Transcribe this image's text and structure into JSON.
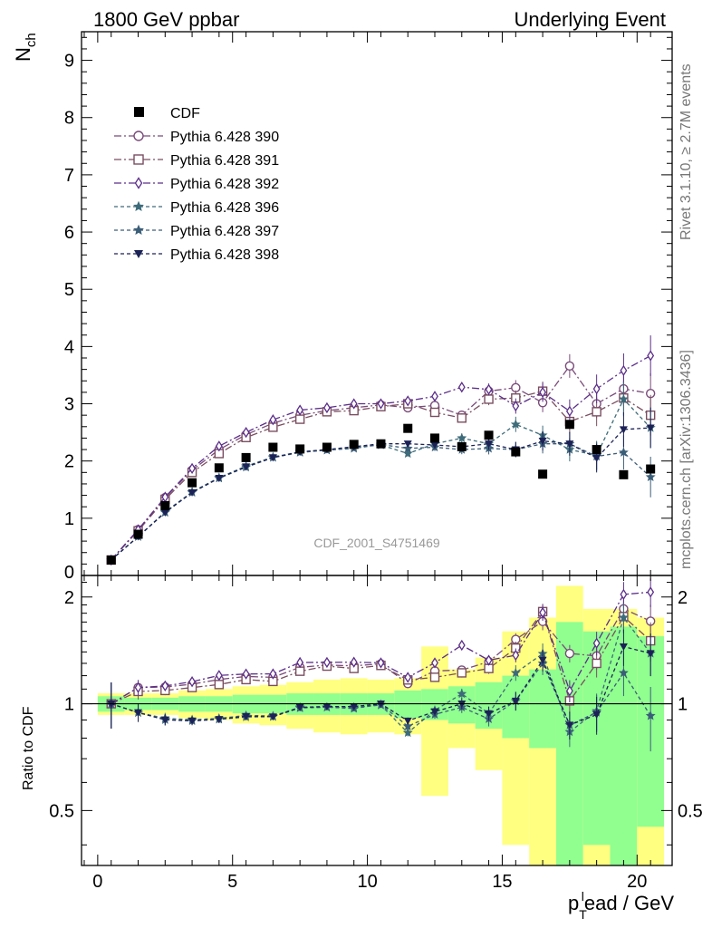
{
  "header": {
    "left": "1800 GeV ppbar",
    "right": "Underlying Event"
  },
  "side_labels": {
    "rivet": "Rivet 3.1.10, ≥ 2.7M events",
    "mcplots": "mcplots.cern.ch [arXiv:1306.3436]"
  },
  "chart_data": {
    "type": "scatter",
    "analysis": "CDF_2001_S4751469",
    "xlabel": {
      "p": "p",
      "sub": "T",
      "sup": "l",
      "rest": "ead / GeV"
    },
    "ylabel": {
      "main": "N",
      "sub": "ch"
    },
    "ratio_ylabel": "Ratio to CDF",
    "xlim": [
      -0.6,
      21.3
    ],
    "ylim": [
      0,
      9.5
    ],
    "ratio_ylim": [
      0.35,
      2.3
    ],
    "x_ticks": [
      "0",
      "5",
      "10",
      "15",
      "20"
    ],
    "y_ticks": [
      "0",
      "1",
      "2",
      "3",
      "4",
      "5",
      "6",
      "7",
      "8",
      "9"
    ],
    "ratio_ticks": [
      "0.5",
      "1",
      "2"
    ],
    "legend": {
      "position": "top-left"
    },
    "x": [
      0.5,
      1.5,
      2.5,
      3.5,
      4.5,
      5.5,
      6.5,
      7.5,
      8.5,
      9.5,
      10.5,
      11.5,
      12.5,
      13.5,
      14.5,
      15.5,
      16.5,
      17.5,
      18.5,
      19.5,
      20.5
    ],
    "data": {
      "name": "CDF",
      "color": "#000000",
      "values": [
        0.27,
        0.72,
        1.22,
        1.62,
        1.88,
        2.06,
        2.24,
        2.21,
        2.24,
        2.29,
        2.3,
        2.57,
        2.4,
        2.25,
        2.45,
        2.16,
        1.77,
        2.64,
        2.2,
        1.76,
        1.86
      ]
    },
    "band_inner": [
      0.05,
      0.04,
      0.04,
      0.05,
      0.05,
      0.06,
      0.06,
      0.07,
      0.07,
      0.07,
      0.07,
      0.09,
      0.1,
      0.12,
      0.15,
      0.2,
      0.25,
      0.7,
      0.6,
      0.65,
      0.55
    ],
    "band_outer": [
      0.07,
      0.07,
      0.07,
      0.09,
      0.1,
      0.12,
      0.13,
      0.15,
      0.17,
      0.18,
      0.17,
      0.18,
      0.45,
      0.25,
      0.35,
      0.6,
      0.75,
      1.15,
      0.85,
      0.85,
      0.75
    ],
    "series": [
      {
        "name": "Pythia 6.428 390",
        "color": "#7a4b7a",
        "marker": "circle",
        "dash": "8,3,2,3",
        "values": [
          0.27,
          0.8,
          1.36,
          1.84,
          2.2,
          2.46,
          2.66,
          2.8,
          2.88,
          2.93,
          2.98,
          2.93,
          2.97,
          2.8,
          3.22,
          3.28,
          3.02,
          3.66,
          3.0,
          3.26,
          3.18
        ]
      },
      {
        "name": "Pythia 6.428 391",
        "color": "#7a4e60",
        "marker": "square",
        "dash": "8,3,2,3",
        "values": [
          0.27,
          0.78,
          1.33,
          1.8,
          2.13,
          2.41,
          2.59,
          2.73,
          2.86,
          2.88,
          2.95,
          3.0,
          2.85,
          2.75,
          3.08,
          3.1,
          3.22,
          2.69,
          2.86,
          3.1,
          2.8
        ]
      },
      {
        "name": "Pythia 6.428 392",
        "color": "#5c2e8a",
        "marker": "diamond",
        "dash": "8,3,2,3",
        "values": [
          0.27,
          0.8,
          1.37,
          1.87,
          2.26,
          2.5,
          2.72,
          2.89,
          2.93,
          3.0,
          3.0,
          3.05,
          3.13,
          3.29,
          3.25,
          2.96,
          3.2,
          2.87,
          3.26,
          3.58,
          3.84
        ]
      },
      {
        "name": "Pythia 6.428 396",
        "color": "#3d6b7a",
        "marker": "star",
        "dash": "4,3",
        "values": [
          0.27,
          0.68,
          1.11,
          1.46,
          1.71,
          1.91,
          2.07,
          2.16,
          2.19,
          2.24,
          2.28,
          2.13,
          2.3,
          2.4,
          2.3,
          2.64,
          2.45,
          2.2,
          2.1,
          3.08,
          2.58
        ]
      },
      {
        "name": "Pythia 6.428 397",
        "color": "#3b5e78",
        "marker": "star",
        "dash": "4,3",
        "values": [
          0.27,
          0.68,
          1.1,
          1.45,
          1.7,
          1.89,
          2.06,
          2.15,
          2.19,
          2.22,
          2.29,
          2.22,
          2.24,
          2.2,
          2.22,
          2.2,
          2.3,
          2.3,
          2.08,
          2.15,
          1.72
        ]
      },
      {
        "name": "Pythia 6.428 398",
        "color": "#1c2256",
        "marker": "tri",
        "dash": "4,3",
        "values": [
          0.27,
          0.68,
          1.1,
          1.45,
          1.7,
          1.9,
          2.06,
          2.16,
          2.2,
          2.25,
          2.3,
          2.3,
          2.28,
          2.25,
          2.3,
          2.2,
          2.35,
          2.3,
          2.05,
          2.55,
          2.58
        ]
      }
    ]
  }
}
